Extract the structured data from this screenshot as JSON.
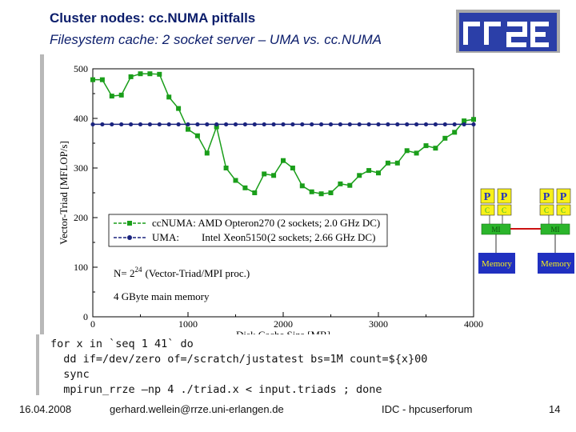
{
  "slide": {
    "title": "Cluster nodes: cc.NUMA pitfalls",
    "subtitle": "Filesystem cache: 2 socket server – UMA vs. cc.NUMA",
    "logo_text": "rrze"
  },
  "colors": {
    "title": "#0b1d6b",
    "ccnuma": "#1a9e1a",
    "uma": "#1a237e",
    "cpu_yellow": "#f7f01a",
    "memory_box": "#2030c0",
    "controller_green": "#2bb52b",
    "link_red": "#cc1111"
  },
  "chart_data": {
    "type": "line",
    "xlabel": "Disk Cache Size [MB]",
    "ylabel": "Vector-Triad [MFLOP/s]",
    "xlim": [
      0,
      4000
    ],
    "ylim": [
      0,
      500
    ],
    "xticks": [
      "0",
      "1000",
      "2000",
      "3000",
      "4000"
    ],
    "yticks": [
      "0",
      "100",
      "200",
      "300",
      "400",
      "500"
    ],
    "grid": false,
    "legend_position": "center-right",
    "series": [
      {
        "name": "ccNUMA: AMD Opteron270 (2 sockets; 2.0 GHz DC)",
        "marker": "square",
        "x": [
          0,
          100,
          200,
          300,
          400,
          500,
          600,
          700,
          800,
          900,
          1000,
          1100,
          1200,
          1300,
          1400,
          1500,
          1600,
          1700,
          1800,
          1900,
          2000,
          2100,
          2200,
          2300,
          2400,
          2500,
          2600,
          2700,
          2800,
          2900,
          3000,
          3100,
          3200,
          3300,
          3400,
          3500,
          3600,
          3700,
          3800,
          3900,
          4000
        ],
        "y": [
          478,
          478,
          445,
          447,
          484,
          490,
          490,
          489,
          443,
          420,
          378,
          365,
          330,
          383,
          300,
          275,
          260,
          250,
          288,
          285,
          315,
          300,
          264,
          252,
          248,
          250,
          268,
          265,
          285,
          295,
          290,
          310,
          310,
          335,
          330,
          345,
          340,
          360,
          372,
          395,
          398
        ]
      },
      {
        "name": "UMA: Intel Xeon5150 (2 sockets; 2.66 GHz DC)",
        "marker": "circle",
        "x": [
          0,
          100,
          200,
          300,
          400,
          500,
          600,
          700,
          800,
          900,
          1000,
          1100,
          1200,
          1300,
          1400,
          1500,
          1600,
          1700,
          1800,
          1900,
          2000,
          2100,
          2200,
          2300,
          2400,
          2500,
          2600,
          2700,
          2800,
          2900,
          3000,
          3100,
          3200,
          3300,
          3400,
          3500,
          3600,
          3700,
          3800,
          3900,
          4000
        ],
        "y": [
          388,
          388,
          388,
          388,
          388,
          388,
          388,
          388,
          388,
          388,
          388,
          388,
          388,
          388,
          388,
          388,
          388,
          388,
          388,
          388,
          388,
          388,
          388,
          388,
          388,
          388,
          388,
          388,
          388,
          388,
          388,
          388,
          388,
          388,
          388,
          388,
          388,
          388,
          388,
          388,
          388
        ]
      }
    ],
    "legend": {
      "ccnuma": "ccNUMA: AMD Opteron270 (2 sockets; 2.0 GHz DC)",
      "uma_label": "UMA:",
      "uma_cpu": "Intel Xeon5150",
      "uma_spec": "(2 sockets; 2.66 GHz DC)"
    },
    "annotations": {
      "n_prefix": "N= 2",
      "n_exp": "24",
      "n_suffix": "(Vector-Triad/MPI proc.)",
      "mem_note": "4 GByte main memory"
    }
  },
  "diagram": {
    "cpu_label": "P",
    "cache_label": "C",
    "mi_label": "MI",
    "memory_label": "Memory"
  },
  "code": {
    "lines": [
      "for x in `seq 1 41` do",
      "  dd if=/dev/zero of=/scratch/justatest bs=1M count=${x}00",
      "  sync",
      "  mpirun_rrze –np 4 ./triad.x < input.triads ; done"
    ]
  },
  "footer": {
    "date": "16.04.2008",
    "email": "gerhard.wellein@rrze.uni-erlangen.de",
    "event": "IDC - hpcuserforum",
    "page": "14"
  }
}
